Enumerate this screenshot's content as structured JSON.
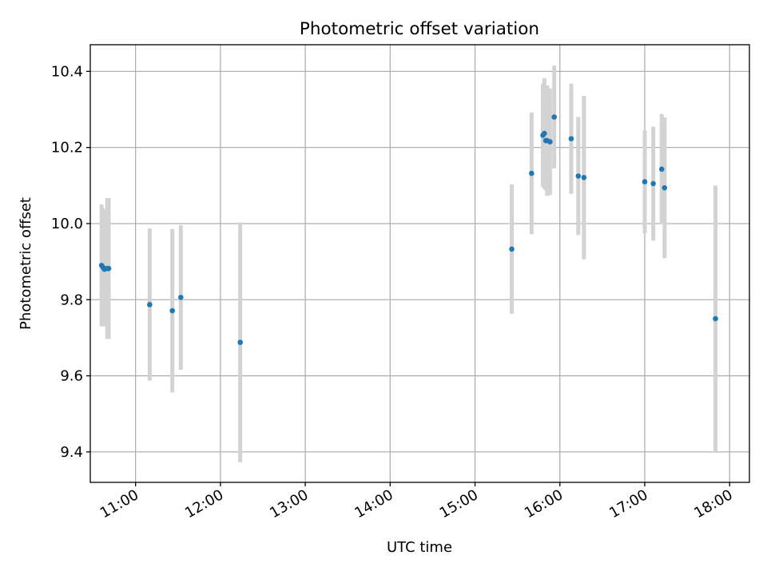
{
  "chart_data": {
    "type": "scatter",
    "title": "Photometric offset variation",
    "xlabel": "UTC time",
    "ylabel": "Photometric offset",
    "x_tick_labels": [
      "11:00",
      "12:00",
      "13:00",
      "14:00",
      "15:00",
      "16:00",
      "17:00",
      "18:00"
    ],
    "y_tick_labels": [
      "9.4",
      "9.6",
      "9.8",
      "10.0",
      "10.2",
      "10.4"
    ],
    "y_ticks": [
      9.4,
      9.6,
      9.8,
      10.0,
      10.2,
      10.4
    ],
    "xlim": [
      "10:28",
      "18:14"
    ],
    "ylim": [
      9.32,
      10.47
    ],
    "grid": true,
    "colors": {
      "point": "#1f77b4",
      "errorbar": "#d3d3d3",
      "grid": "#b0b0b0"
    },
    "points": [
      {
        "time": "10:36",
        "y": 9.89,
        "err": 0.16
      },
      {
        "time": "10:37",
        "y": 9.885,
        "err": 0.155
      },
      {
        "time": "10:38",
        "y": 9.88,
        "err": 0.15
      },
      {
        "time": "10:40",
        "y": 9.882,
        "err": 0.185
      },
      {
        "time": "10:41",
        "y": 9.882,
        "err": 0.185
      },
      {
        "time": "11:10",
        "y": 9.787,
        "err": 0.2
      },
      {
        "time": "11:26",
        "y": 9.771,
        "err": 0.215
      },
      {
        "time": "11:32",
        "y": 9.806,
        "err": 0.19
      },
      {
        "time": "12:14",
        "y": 9.688,
        "err": 0.315
      },
      {
        "time": "15:26",
        "y": 9.933,
        "err": 0.17
      },
      {
        "time": "15:40",
        "y": 10.132,
        "err": 0.16
      },
      {
        "time": "15:48",
        "y": 10.232,
        "err": 0.135
      },
      {
        "time": "15:49",
        "y": 10.237,
        "err": 0.145
      },
      {
        "time": "15:50",
        "y": 10.218,
        "err": 0.13
      },
      {
        "time": "15:51",
        "y": 10.218,
        "err": 0.145
      },
      {
        "time": "15:53",
        "y": 10.215,
        "err": 0.14
      },
      {
        "time": "15:56",
        "y": 10.28,
        "err": 0.135
      },
      {
        "time": "16:08",
        "y": 10.223,
        "err": 0.145
      },
      {
        "time": "16:13",
        "y": 10.125,
        "err": 0.155
      },
      {
        "time": "16:17",
        "y": 10.121,
        "err": 0.215
      },
      {
        "time": "17:00",
        "y": 10.11,
        "err": 0.135
      },
      {
        "time": "17:06",
        "y": 10.105,
        "err": 0.15
      },
      {
        "time": "17:12",
        "y": 10.143,
        "err": 0.145
      },
      {
        "time": "17:14",
        "y": 10.094,
        "err": 0.185
      },
      {
        "time": "17:50",
        "y": 9.75,
        "err": 0.35
      }
    ]
  }
}
